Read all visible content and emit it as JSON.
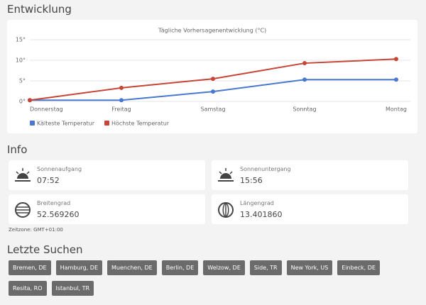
{
  "headings": {
    "development": "Entwicklung",
    "info": "Info",
    "recent": "Letzte Suchen"
  },
  "chart_data": {
    "type": "line",
    "title": "Tägliche Vorhersagenentwicklung (°C)",
    "categories": [
      "Donnerstag",
      "Freitag",
      "Samstag",
      "Sonntag",
      "Montag"
    ],
    "series": [
      {
        "name": "Kälteste Temperatur",
        "color": "#4a78cf",
        "values": [
          0.3,
          0.3,
          2.4,
          5.3,
          5.3
        ]
      },
      {
        "name": "Höchste Temperatur",
        "color": "#c64536",
        "values": [
          0.3,
          3.3,
          5.5,
          9.3,
          10.3
        ]
      }
    ],
    "ylim": [
      0,
      15
    ],
    "yticks": [
      {
        "value": 0,
        "label": "0°"
      },
      {
        "value": 5,
        "label": "5°"
      },
      {
        "value": 10,
        "label": "10°"
      },
      {
        "value": 15,
        "label": "15°"
      }
    ],
    "grid": true
  },
  "info": {
    "cards": [
      {
        "label": "Sonnenaufgang",
        "value": "07:52"
      },
      {
        "label": "Sonnenuntergang",
        "value": "15:56"
      },
      {
        "label": "Breitengrad",
        "value": "52.569260"
      },
      {
        "label": "Längengrad",
        "value": "13.401860"
      }
    ],
    "timezone": "Zeitzone: GMT+01:00"
  },
  "recent_searches": [
    "Bremen, DE",
    "Hamburg, DE",
    "Muenchen, DE",
    "Berlin, DE",
    "Welzow, DE",
    "Side, TR",
    "New York, US",
    "Einbeck, DE",
    "Resita, RO",
    "Istanbul, TR"
  ]
}
